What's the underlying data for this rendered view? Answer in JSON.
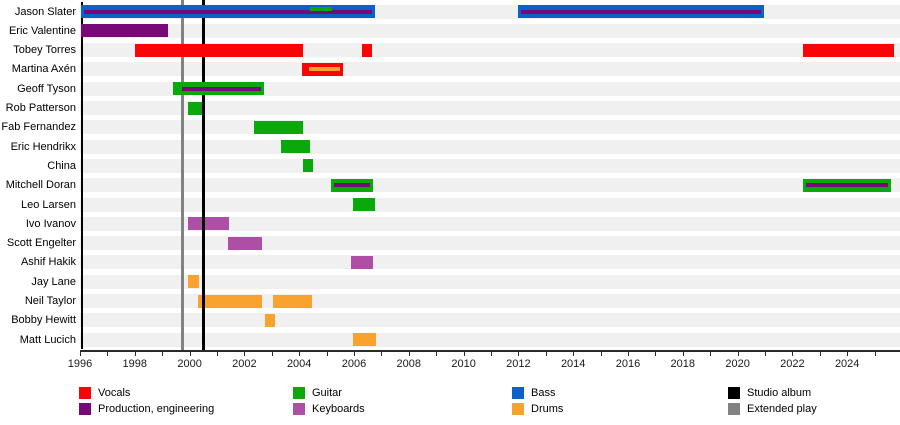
{
  "chart_data": {
    "type": "bar",
    "subtype": "band-member-timeline-gantt",
    "title": "",
    "axis": {
      "range_years": [
        1996,
        2025.9
      ],
      "minor_tick_step": 1,
      "tick_labels": [
        "1996",
        "1998",
        "2000",
        "2002",
        "2004",
        "2006",
        "2008",
        "2010",
        "2012",
        "2014",
        "2016",
        "2018",
        "2020",
        "2022",
        "2024"
      ],
      "label_step": 2,
      "grid": "row-bands"
    },
    "colors": {
      "vocals": "#f80505",
      "guitar": "#0aa80a",
      "bass": "#0a62c8",
      "drums": "#f9a22e",
      "keyboards": "#ae4fa6",
      "production": "#770a77",
      "studio_album": "#000000",
      "extended_play": "#828282",
      "row_band": "#f0f0f0"
    },
    "members": [
      {
        "name": "Jason Slater",
        "bars": [
          {
            "start": 1996.02,
            "end": 2006.75,
            "role": "bass",
            "stripes": [
              {
                "role": "production",
                "pos": "center"
              },
              {
                "role": "guitar",
                "start": 2004.4,
                "end": 2005.2,
                "pos": "upper"
              }
            ]
          },
          {
            "start": 2012.0,
            "end": 2020.95,
            "role": "bass",
            "stripes": [
              {
                "role": "production",
                "pos": "center"
              }
            ]
          }
        ]
      },
      {
        "name": "Eric Valentine",
        "bars": [
          {
            "start": 1996.02,
            "end": 1999.2,
            "role": "production"
          }
        ]
      },
      {
        "name": "Tobey Torres",
        "bars": [
          {
            "start": 1998.0,
            "end": 2004.15,
            "role": "vocals"
          },
          {
            "start": 2006.3,
            "end": 2006.65,
            "role": "vocals"
          },
          {
            "start": 2022.4,
            "end": 2025.7,
            "role": "vocals"
          }
        ]
      },
      {
        "name": "Martina Axén",
        "bars": [
          {
            "start": 2004.1,
            "end": 2005.6,
            "role": "vocals",
            "stripes": [
              {
                "role": "drums",
                "start": 2004.35,
                "end": 2005.5,
                "pos": "center"
              }
            ]
          }
        ]
      },
      {
        "name": "Geoff Tyson",
        "bars": [
          {
            "start": 1999.4,
            "end": 2002.7,
            "role": "guitar",
            "stripes": [
              {
                "role": "production",
                "start": 1999.72,
                "end": 2002.62,
                "pos": "center"
              }
            ]
          }
        ]
      },
      {
        "name": "Rob Patterson",
        "bars": [
          {
            "start": 1999.95,
            "end": 2000.5,
            "role": "guitar"
          }
        ]
      },
      {
        "name": "Fab Fernandez",
        "bars": [
          {
            "start": 2002.35,
            "end": 2004.15,
            "role": "guitar"
          }
        ]
      },
      {
        "name": "Eric Hendrikx",
        "bars": [
          {
            "start": 2003.35,
            "end": 2004.4,
            "role": "guitar"
          }
        ]
      },
      {
        "name": "China",
        "bars": [
          {
            "start": 2004.15,
            "end": 2004.5,
            "role": "guitar"
          }
        ]
      },
      {
        "name": "Mitchell Doran",
        "bars": [
          {
            "start": 2005.15,
            "end": 2006.7,
            "role": "guitar",
            "stripes": [
              {
                "role": "production",
                "pos": "center"
              }
            ]
          },
          {
            "start": 2022.4,
            "end": 2025.6,
            "role": "guitar",
            "stripes": [
              {
                "role": "production",
                "pos": "center"
              }
            ]
          }
        ]
      },
      {
        "name": "Leo Larsen",
        "bars": [
          {
            "start": 2005.95,
            "end": 2006.75,
            "role": "guitar"
          }
        ]
      },
      {
        "name": "Ivo Ivanov",
        "bars": [
          {
            "start": 1999.95,
            "end": 2001.45,
            "role": "keyboards"
          }
        ]
      },
      {
        "name": "Scott Engelter",
        "bars": [
          {
            "start": 2001.4,
            "end": 2002.65,
            "role": "keyboards"
          }
        ]
      },
      {
        "name": "Ashif Hakik",
        "bars": [
          {
            "start": 2005.9,
            "end": 2006.7,
            "role": "keyboards"
          }
        ]
      },
      {
        "name": "Jay Lane",
        "bars": [
          {
            "start": 1999.95,
            "end": 2000.35,
            "role": "drums"
          }
        ]
      },
      {
        "name": "Neil Taylor",
        "bars": [
          {
            "start": 2000.3,
            "end": 2002.65,
            "role": "drums"
          },
          {
            "start": 2003.05,
            "end": 2004.45,
            "role": "drums"
          }
        ]
      },
      {
        "name": "Bobby Hewitt",
        "bars": [
          {
            "start": 2002.75,
            "end": 2003.1,
            "role": "drums"
          }
        ]
      },
      {
        "name": "Matt Lucich",
        "bars": [
          {
            "start": 2005.95,
            "end": 2006.8,
            "role": "drums"
          }
        ]
      }
    ],
    "events": [
      {
        "year": 1999.74,
        "label": "Extended play",
        "role": "extended_play"
      },
      {
        "year": 2000.5,
        "label": "Studio album",
        "role": "studio_album"
      }
    ],
    "legend": [
      {
        "label": "Vocals",
        "role": "vocals",
        "col": 0,
        "row": 0
      },
      {
        "label": "Production, engineering",
        "role": "production",
        "col": 0,
        "row": 1
      },
      {
        "label": "Guitar",
        "role": "guitar",
        "col": 1,
        "row": 0
      },
      {
        "label": "Keyboards",
        "role": "keyboards",
        "col": 1,
        "row": 1
      },
      {
        "label": "Bass",
        "role": "bass",
        "col": 2,
        "row": 0
      },
      {
        "label": "Drums",
        "role": "drums",
        "col": 2,
        "row": 1
      },
      {
        "label": "Studio album",
        "role": "studio_album",
        "col": 3,
        "row": 0
      },
      {
        "label": "Extended play",
        "role": "extended_play",
        "col": 3,
        "row": 1
      }
    ]
  }
}
